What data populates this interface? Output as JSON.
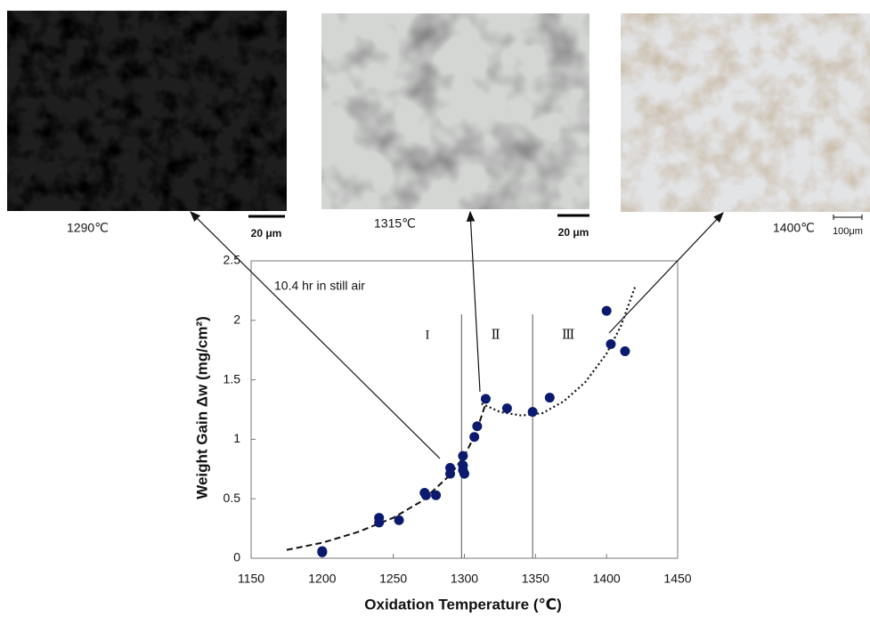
{
  "chart_data": {
    "type": "scatter",
    "title_annotation": "10.4 hr in still air",
    "x_label": "Oxidation Temperature (℃)",
    "y_label": "Weight Gain Δw (mg/cm²)",
    "x": [
      1200,
      1200,
      1240,
      1240,
      1254,
      1272,
      1273,
      1280,
      1290,
      1290,
      1299,
      1299,
      1299,
      1300,
      1307,
      1309,
      1315,
      1330,
      1348,
      1360,
      1400,
      1403,
      1413
    ],
    "values": [
      0.06,
      0.05,
      0.34,
      0.3,
      0.32,
      0.55,
      0.53,
      0.53,
      0.76,
      0.71,
      0.86,
      0.78,
      0.74,
      0.71,
      1.02,
      1.11,
      1.34,
      1.26,
      1.23,
      1.35,
      2.08,
      1.8,
      1.74
    ],
    "color": "#0b1a6e",
    "xlim": [
      1150,
      1450
    ],
    "ylim": [
      0,
      2.5
    ],
    "xticks": [
      1150,
      1200,
      1250,
      1300,
      1350,
      1400,
      1450
    ],
    "yticks": [
      0,
      0.5,
      1,
      1.5,
      2,
      2.5
    ],
    "curves": [
      {
        "style": "dashed",
        "x": [
          1175,
          1200,
          1225,
          1250,
          1270,
          1290,
          1300,
          1308,
          1315
        ],
        "y": [
          0.07,
          0.13,
          0.22,
          0.34,
          0.48,
          0.7,
          0.86,
          1.05,
          1.3
        ]
      },
      {
        "style": "dotted",
        "x": [
          1312,
          1325,
          1340,
          1355,
          1370,
          1385,
          1400,
          1410,
          1420
        ],
        "y": [
          1.3,
          1.23,
          1.2,
          1.22,
          1.32,
          1.48,
          1.72,
          1.95,
          2.28
        ]
      }
    ],
    "dividers": [
      1298,
      1348
    ],
    "divider_top": 2.05,
    "regions": [
      {
        "label": "I",
        "x": 1274,
        "y": 1.87
      },
      {
        "label": "Ⅱ",
        "x": 1322,
        "y": 1.87
      },
      {
        "label": "Ⅲ",
        "x": 1373,
        "y": 1.87
      }
    ],
    "images": [
      {
        "caption": "1290℃",
        "scale": "20 μm"
      },
      {
        "caption": "1315℃",
        "scale": "20 μm"
      },
      {
        "caption": "1400℃",
        "scale": "100μm"
      }
    ]
  }
}
